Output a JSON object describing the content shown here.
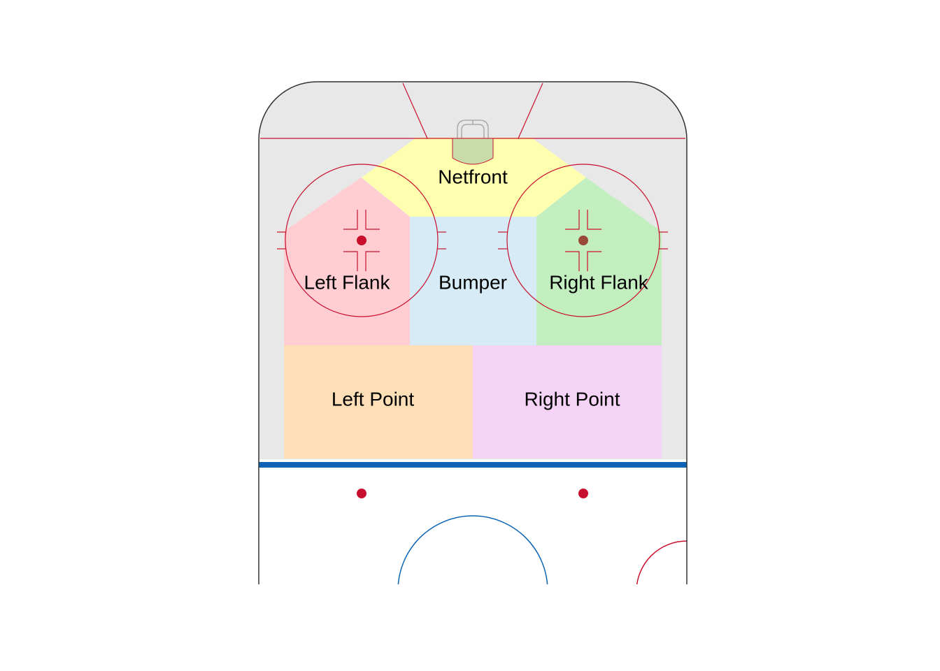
{
  "diagram": {
    "zones": [
      {
        "id": "netfront",
        "label": "Netfront",
        "color": "#ffffb0"
      },
      {
        "id": "left-flank",
        "label": "Left Flank",
        "color": "#ffcdd2"
      },
      {
        "id": "bumper",
        "label": "Bumper",
        "color": "#d6ebf5"
      },
      {
        "id": "right-flank",
        "label": "Right Flank",
        "color": "#c3efc0"
      },
      {
        "id": "left-point",
        "label": "Left Point",
        "color": "#fddfb7"
      },
      {
        "id": "right-point",
        "label": "Right Point",
        "color": "#f5d3f7"
      }
    ],
    "colors": {
      "offensive_zone": "#e8e8e8",
      "ice": "#ffffff",
      "red_line": "#c8102e",
      "blue_line": "#0e64b4",
      "boards": "#333333",
      "crease": "#c9dba8",
      "net": "#aaaaaa"
    }
  }
}
